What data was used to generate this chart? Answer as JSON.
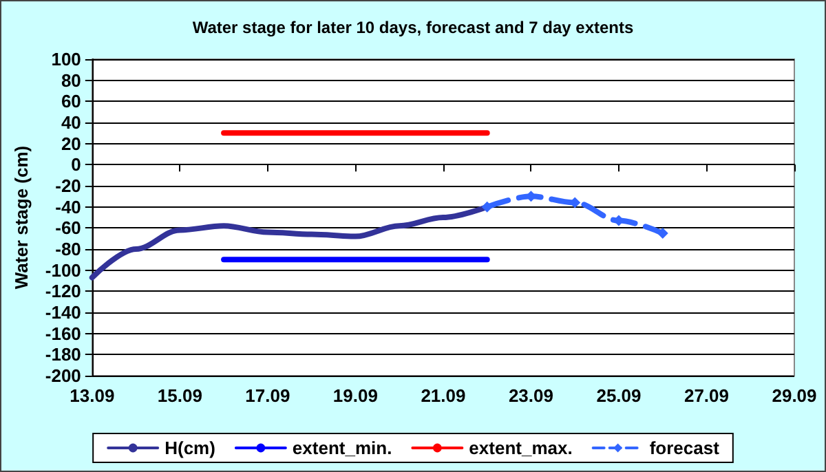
{
  "chart_data": {
    "type": "line",
    "title": "Water stage for later 10 days, forecast and 7 day extents",
    "ylabel": "Water stage (cm)",
    "xlim": [
      "--09-13",
      "--09-29"
    ],
    "xticks": [
      {
        "value": "--09-13",
        "label": "13.09"
      },
      {
        "value": "--09-15",
        "label": "15.09"
      },
      {
        "value": "--09-17",
        "label": "17.09"
      },
      {
        "value": "--09-19",
        "label": "19.09"
      },
      {
        "value": "--09-21",
        "label": "21.09"
      },
      {
        "value": "--09-23",
        "label": "23.09"
      },
      {
        "value": "--09-25",
        "label": "25.09"
      },
      {
        "value": "--09-27",
        "label": "27.09"
      },
      {
        "value": "--09-29",
        "label": "29.09"
      }
    ],
    "ylim": [
      -200,
      100
    ],
    "yticks": [
      -200,
      -180,
      -160,
      -140,
      -120,
      -100,
      -80,
      -60,
      -40,
      -20,
      0,
      20,
      40,
      60,
      80,
      100
    ],
    "grid": "y",
    "legend": "bottom",
    "series": [
      {
        "name": "H(cm)",
        "color": "#333399",
        "marker": "none",
        "line_style": "solid",
        "x": [
          "--09-13",
          "--09-14",
          "--09-15",
          "--09-16",
          "--09-17",
          "--09-18",
          "--09-19",
          "--09-20",
          "--09-21",
          "--09-22"
        ],
        "values": [
          -107,
          -80,
          -62,
          -58,
          -64,
          -66,
          -68,
          -58,
          -50,
          -40
        ]
      },
      {
        "name": "extent_min.",
        "color": "#0000ff",
        "marker": "none",
        "line_style": "solid",
        "x": [
          "--09-16",
          "--09-22"
        ],
        "values": [
          -90,
          -90
        ]
      },
      {
        "name": "extent_max.",
        "color": "#ff0000",
        "marker": "none",
        "line_style": "solid",
        "x": [
          "--09-16",
          "--09-22"
        ],
        "values": [
          30,
          30
        ]
      },
      {
        "name": "forecast",
        "color": "#3366ff",
        "marker": "diamond",
        "line_style": "dashed",
        "x": [
          "--09-22",
          "--09-23",
          "--09-24",
          "--09-25",
          "--09-26"
        ],
        "values": [
          -40,
          -30,
          -36,
          -53,
          -65
        ]
      }
    ]
  }
}
